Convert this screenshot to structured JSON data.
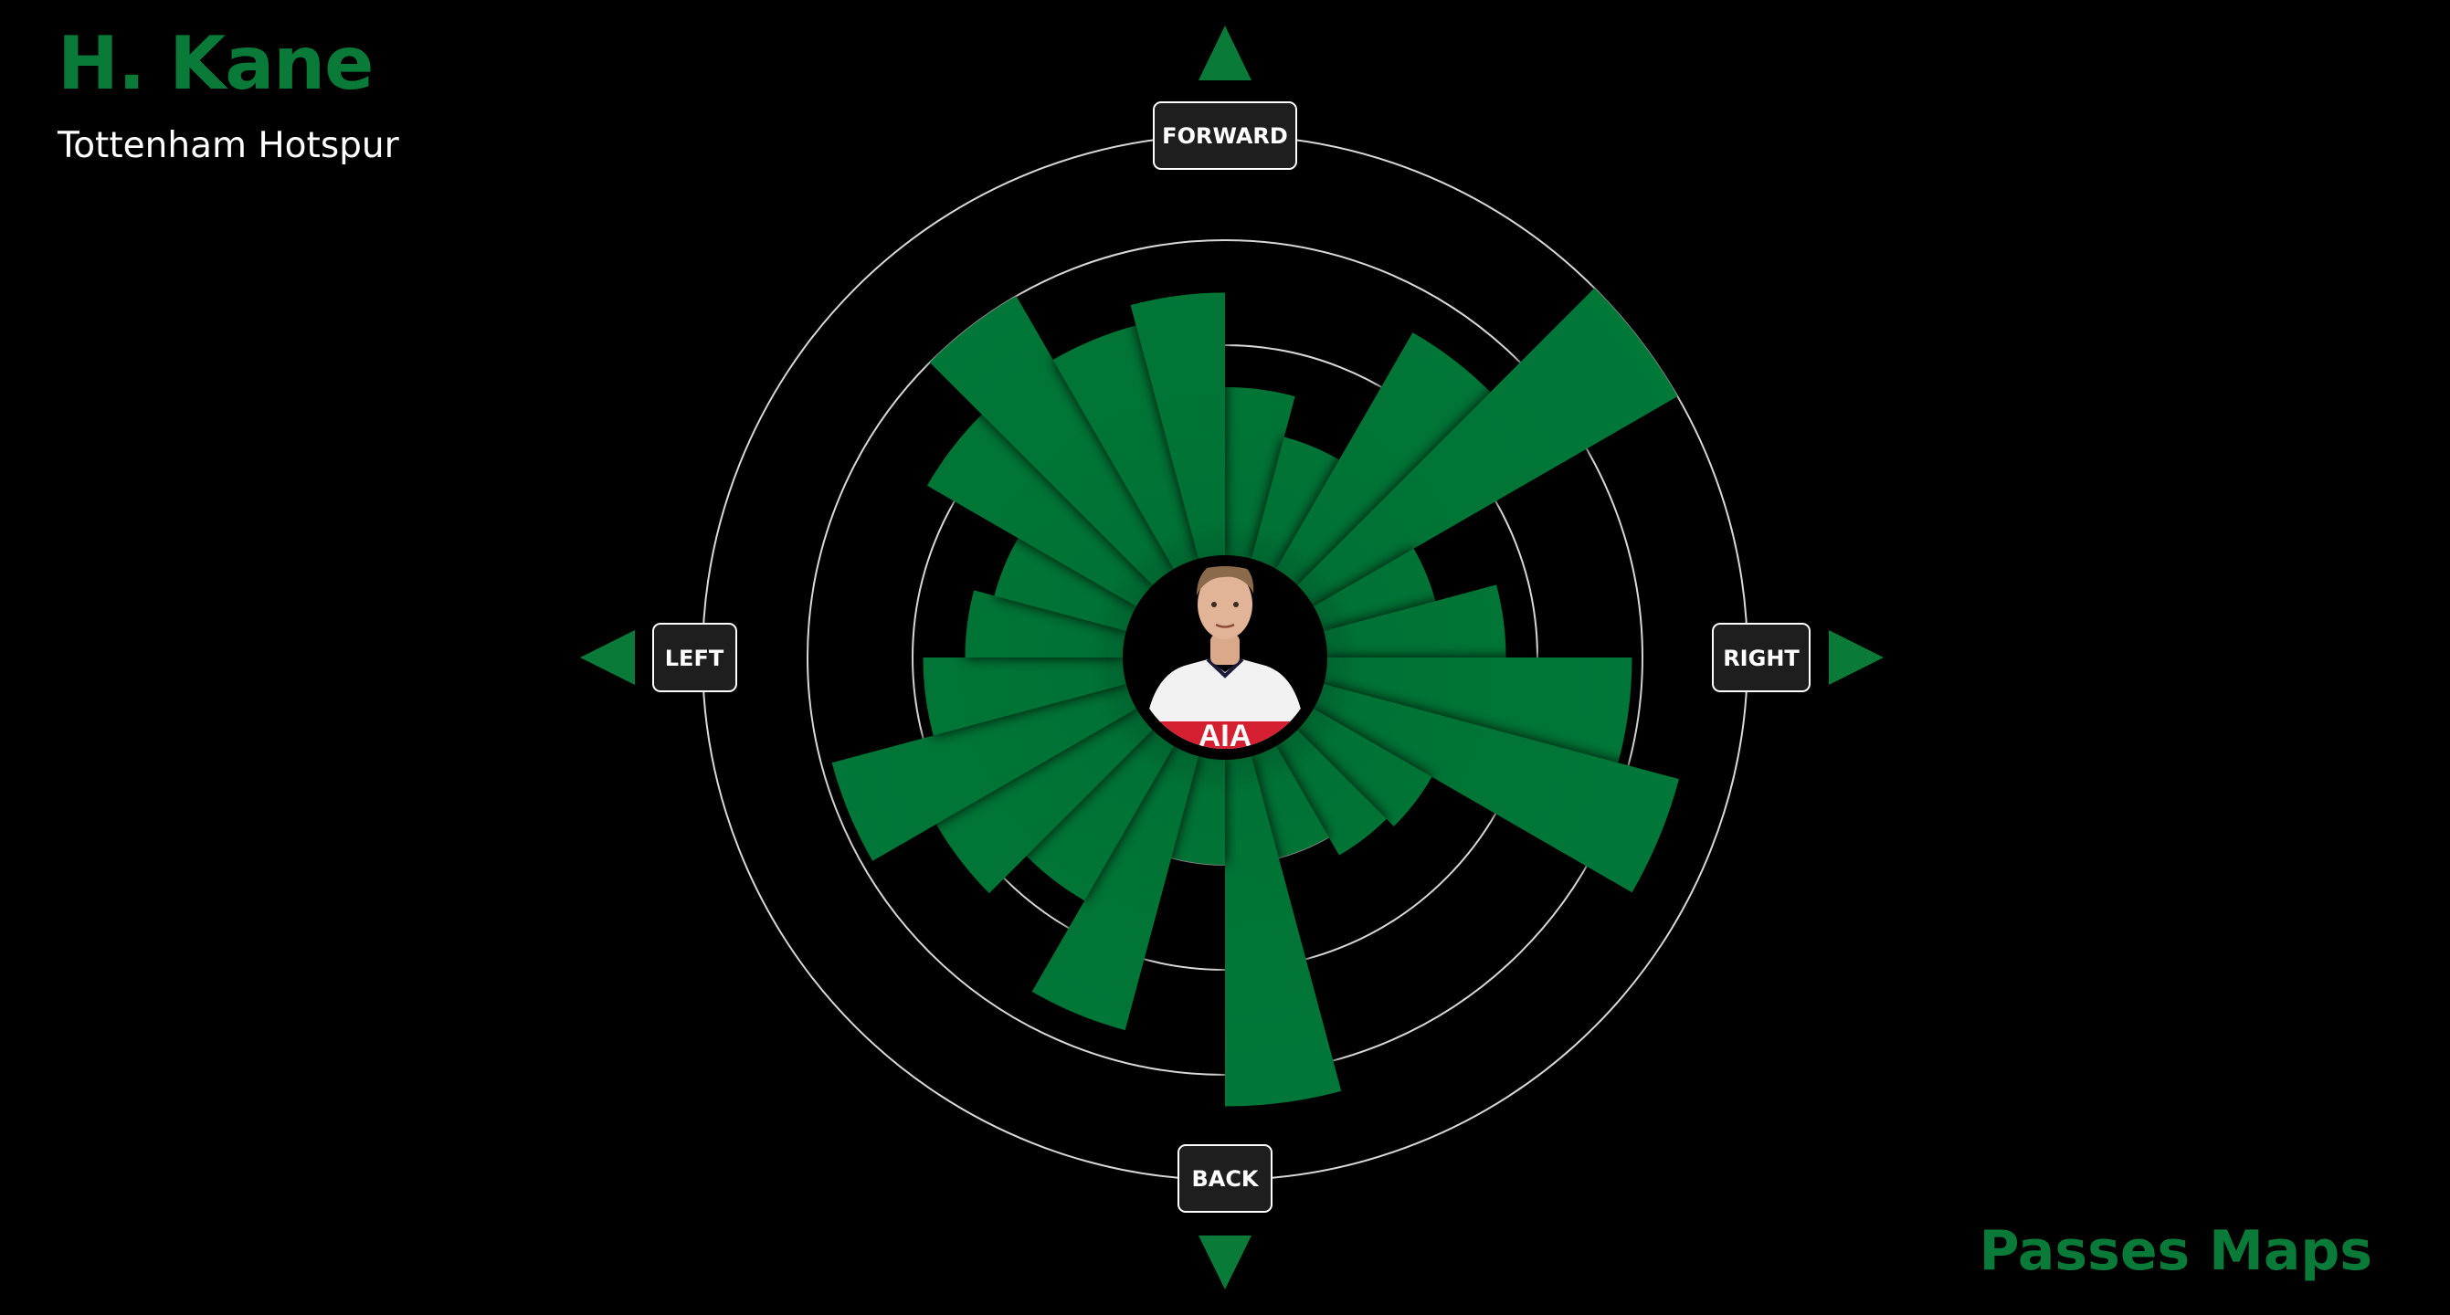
{
  "header": {
    "player": "H. Kane",
    "team": "Tottenham Hotspur"
  },
  "footer": {
    "title": "Passes Maps"
  },
  "directions": {
    "forward": "FORWARD",
    "back": "BACK",
    "left": "LEFT",
    "right": "RIGHT"
  },
  "colors": {
    "accent": "#0a7a38",
    "bar": "#037235",
    "background": "#000000",
    "ring": "#d8d8d8",
    "label_box": "#1e1e1e"
  },
  "chart_data": {
    "type": "polar-bar",
    "units": "ring-scale",
    "ring_levels": [
      1,
      2,
      3,
      4
    ],
    "segment_width_deg": 15,
    "angle_reference": "0 = forward (up), clockwise",
    "segments": [
      {
        "angle": 0,
        "value": 1.6
      },
      {
        "angle": 15,
        "value": 1.2
      },
      {
        "angle": 30,
        "value": 2.6
      },
      {
        "angle": 45,
        "value": 4.0
      },
      {
        "angle": 60,
        "value": 1.1
      },
      {
        "angle": 75,
        "value": 1.7
      },
      {
        "angle": 90,
        "value": 2.9
      },
      {
        "angle": 105,
        "value": 3.5
      },
      {
        "angle": 120,
        "value": 1.3
      },
      {
        "angle": 135,
        "value": 1.2
      },
      {
        "angle": 150,
        "value": 1.0
      },
      {
        "angle": 165,
        "value": 3.3
      },
      {
        "angle": 180,
        "value": 1.0
      },
      {
        "angle": 195,
        "value": 2.7
      },
      {
        "angle": 210,
        "value": 1.7
      },
      {
        "angle": 225,
        "value": 2.2
      },
      {
        "angle": 240,
        "value": 2.9
      },
      {
        "angle": 255,
        "value": 1.9
      },
      {
        "angle": 270,
        "value": 1.5
      },
      {
        "angle": 285,
        "value": 1.3
      },
      {
        "angle": 300,
        "value": 2.3
      },
      {
        "angle": 315,
        "value": 3.0
      },
      {
        "angle": 330,
        "value": 2.3
      },
      {
        "angle": 345,
        "value": 2.5
      }
    ]
  }
}
